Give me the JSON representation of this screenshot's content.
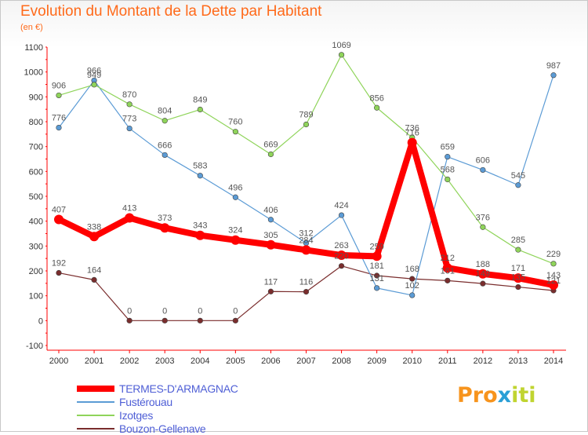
{
  "title": "Evolution du Montant de la Dette par Habitant",
  "subtitle": "(en €)",
  "logo": {
    "text_a": "Pro",
    "text_x": "x",
    "text_b": "iti"
  },
  "colors": {
    "TERMES-D'ARMAGNAC": "#ff0000",
    "Fustérouau": "#5b9bd5",
    "Izotges": "#8fd45a",
    "Bouzon-Gellenave": "#7a2d2d"
  },
  "chart_data": {
    "type": "line",
    "title": "Evolution du Montant de la Dette par Habitant",
    "subtitle": "(en €)",
    "x": [
      2000,
      2001,
      2002,
      2003,
      2004,
      2005,
      2006,
      2007,
      2008,
      2009,
      2010,
      2011,
      2012,
      2013,
      2014
    ],
    "ylim": [
      -100,
      1100
    ],
    "yticks": [
      -100,
      0,
      100,
      200,
      300,
      400,
      500,
      600,
      700,
      800,
      900,
      1000,
      1100
    ],
    "grid": false,
    "legend_position": "bottom-left",
    "series": [
      {
        "name": "Bouzon-Gellenave",
        "values": [
          192,
          164,
          0,
          0,
          0,
          0,
          117,
          116,
          220,
          181,
          168,
          161,
          149,
          135,
          121
        ],
        "labels": [
          "192",
          "164",
          "0",
          "0",
          "0",
          "0",
          "117",
          "116",
          "220",
          "181",
          "168",
          "161",
          "149",
          "135",
          "121"
        ]
      },
      {
        "name": "Fustérouau",
        "values": [
          776,
          966,
          773,
          666,
          583,
          496,
          406,
          312,
          424,
          131,
          102,
          659,
          606,
          545,
          987
        ],
        "labels": [
          "776",
          "966",
          "773",
          "666",
          "583",
          "496",
          "406",
          "312",
          "424",
          "131",
          "102",
          "659",
          "606",
          "545",
          "987"
        ]
      },
      {
        "name": "Izotges",
        "values": [
          906,
          949,
          870,
          804,
          849,
          760,
          669,
          789,
          1069,
          856,
          736,
          568,
          376,
          285,
          229
        ],
        "labels": [
          "906",
          "949",
          "870",
          "804",
          "849",
          "760",
          "669",
          "789",
          "1069",
          "856",
          "736",
          "568",
          "376",
          "285",
          "229"
        ]
      },
      {
        "name": "TERMES-D'ARMAGNAC",
        "values": [
          407,
          338,
          413,
          373,
          343,
          324,
          305,
          284,
          263,
          259,
          716,
          212,
          188,
          171,
          143
        ],
        "labels": [
          "407",
          "338",
          "413",
          "373",
          "343",
          "324",
          "305",
          "284",
          "263",
          "259",
          "716",
          "212",
          "188",
          "171",
          "143"
        ]
      }
    ],
    "legend": [
      "TERMES-D'ARMAGNAC",
      "Fustérouau",
      "Izotges",
      "Bouzon-Gellenave"
    ]
  }
}
